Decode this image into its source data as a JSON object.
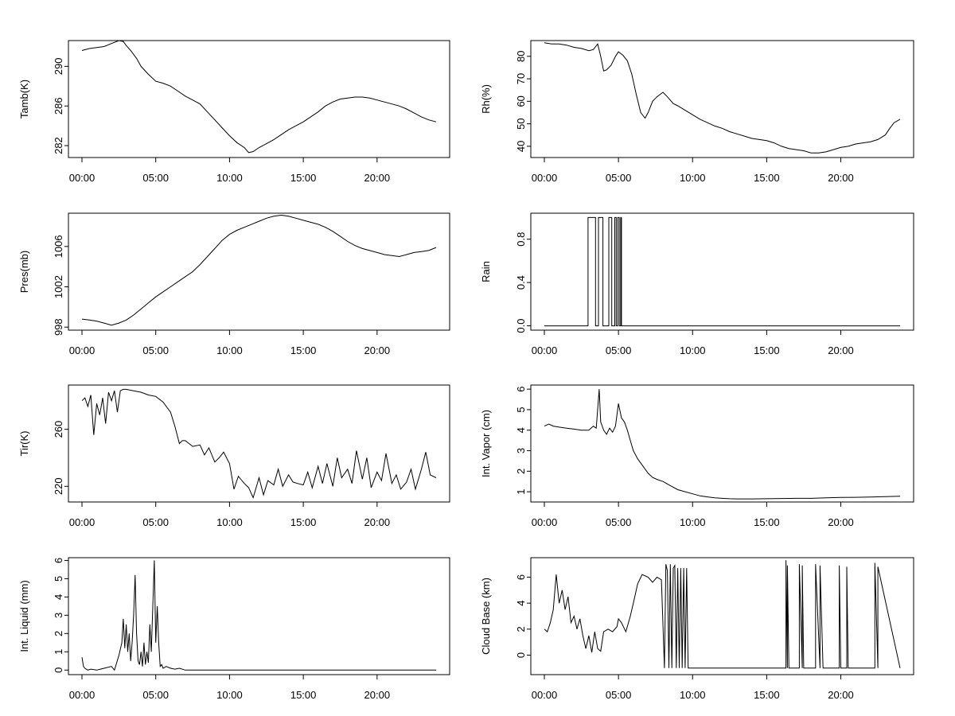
{
  "chart_data": [
    {
      "id": "tamb",
      "type": "line",
      "ylabel": "Tamb(K)",
      "xlabel": "",
      "x_ticks": [
        "00:00",
        "05:00",
        "10:00",
        "15:00",
        "20:00"
      ],
      "xlim": [
        0,
        24
      ],
      "ylim": [
        280.8,
        292.6
      ],
      "y_ticks": [
        "282",
        "286",
        "290"
      ],
      "series": [
        {
          "name": "Tamb(K)",
          "x": [
            0,
            0.5,
            1,
            1.5,
            2,
            2.5,
            2.8,
            3,
            3.3,
            3.7,
            4,
            4.5,
            5,
            5.5,
            6,
            6.5,
            7,
            7.5,
            8,
            8.5,
            9,
            9.5,
            10,
            10.5,
            11,
            11.3,
            11.6,
            12,
            12.5,
            13,
            13.5,
            14,
            14.5,
            15,
            15.5,
            16,
            16.5,
            17,
            17.5,
            18,
            18.5,
            19,
            19.5,
            20,
            20.5,
            21,
            21.5,
            22,
            22.5,
            23,
            23.5,
            24
          ],
          "y": [
            291.6,
            291.8,
            291.9,
            292.0,
            292.3,
            292.6,
            292.5,
            292.1,
            291.6,
            290.8,
            290.0,
            289.2,
            288.5,
            288.3,
            288.0,
            287.5,
            287.0,
            286.6,
            286.2,
            285.4,
            284.6,
            283.8,
            283.0,
            282.3,
            281.8,
            281.3,
            281.4,
            281.8,
            282.2,
            282.6,
            283.1,
            283.6,
            284.0,
            284.4,
            284.9,
            285.4,
            286.0,
            286.4,
            286.7,
            286.8,
            286.9,
            286.9,
            286.8,
            286.6,
            286.4,
            286.2,
            286.0,
            285.7,
            285.3,
            284.9,
            284.6,
            284.4
          ]
        }
      ]
    },
    {
      "id": "rh",
      "type": "line",
      "ylabel": "Rh(%)",
      "xlabel": "",
      "x_ticks": [
        "00:00",
        "05:00",
        "10:00",
        "15:00",
        "20:00"
      ],
      "xlim": [
        0,
        24
      ],
      "ylim": [
        35,
        87
      ],
      "y_ticks": [
        "40",
        "50",
        "60",
        "70",
        "80"
      ],
      "series": [
        {
          "name": "Rh(%)",
          "x": [
            0,
            0.5,
            1,
            1.5,
            2,
            2.5,
            3,
            3.3,
            3.6,
            3.8,
            4.0,
            4.2,
            4.5,
            4.8,
            5.0,
            5.3,
            5.6,
            5.9,
            6.2,
            6.5,
            6.8,
            7.0,
            7.3,
            7.6,
            8.0,
            8.3,
            8.7,
            9.0,
            9.5,
            10,
            10.5,
            11,
            11.5,
            12,
            12.5,
            13,
            13.5,
            14,
            14.5,
            15,
            15.5,
            16,
            16.5,
            17,
            17.5,
            18,
            18.5,
            19,
            19.5,
            20,
            20.5,
            21,
            21.5,
            22,
            22.5,
            23,
            23.3,
            23.6,
            24
          ],
          "y": [
            86,
            85.5,
            85.5,
            85,
            84,
            83.5,
            82.5,
            83,
            85.5,
            80,
            73.5,
            74,
            76,
            80,
            82,
            80.5,
            78,
            72,
            63,
            55,
            52.5,
            55,
            60,
            62,
            64,
            62,
            59,
            58,
            56,
            54,
            52,
            50.5,
            49,
            48,
            46.5,
            45.5,
            44.5,
            43.5,
            43,
            42.5,
            41.5,
            40,
            39,
            38.5,
            38,
            37,
            37,
            37.5,
            38.5,
            39.5,
            40,
            41,
            41.5,
            42,
            43,
            45,
            48,
            50.5,
            52
          ]
        }
      ]
    },
    {
      "id": "pres",
      "type": "line",
      "ylabel": "Pres(mb)",
      "xlabel": "",
      "x_ticks": [
        "00:00",
        "05:00",
        "10:00",
        "15:00",
        "20:00"
      ],
      "xlim": [
        0,
        24
      ],
      "ylim": [
        997.7,
        1009.3
      ],
      "y_ticks": [
        "998",
        "1002",
        "1006"
      ],
      "series": [
        {
          "name": "Pres(mb)",
          "x": [
            0,
            0.5,
            1,
            1.5,
            2,
            2.5,
            3,
            3.5,
            4,
            4.5,
            5,
            5.5,
            6,
            6.5,
            7,
            7.5,
            8,
            8.5,
            9,
            9.5,
            10,
            10.5,
            11,
            11.5,
            12,
            12.5,
            13,
            13.5,
            14,
            14.5,
            15,
            15.5,
            16,
            16.5,
            17,
            17.5,
            18,
            18.5,
            19,
            19.5,
            20,
            20.5,
            21,
            21.5,
            22,
            22.5,
            23,
            23.5,
            24
          ],
          "y": [
            998.8,
            998.7,
            998.6,
            998.4,
            998.2,
            998.4,
            998.7,
            999.2,
            999.8,
            1000.4,
            1001.0,
            1001.5,
            1002.0,
            1002.5,
            1003.0,
            1003.5,
            1004.2,
            1005.0,
            1005.8,
            1006.6,
            1007.2,
            1007.6,
            1007.9,
            1008.2,
            1008.5,
            1008.8,
            1009.0,
            1009.1,
            1009.0,
            1008.8,
            1008.6,
            1008.4,
            1008.2,
            1007.9,
            1007.5,
            1007.0,
            1006.5,
            1006.1,
            1005.8,
            1005.6,
            1005.4,
            1005.2,
            1005.1,
            1005.0,
            1005.2,
            1005.4,
            1005.5,
            1005.6,
            1005.9
          ]
        }
      ]
    },
    {
      "id": "rain",
      "type": "line",
      "ylabel": "Rain",
      "xlabel": "",
      "x_ticks": [
        "00:00",
        "05:00",
        "10:00",
        "15:00",
        "20:00"
      ],
      "xlim": [
        0,
        24
      ],
      "ylim": [
        -0.04,
        1.04
      ],
      "y_ticks": [
        "0.0",
        "0.4",
        "0.8"
      ],
      "series": [
        {
          "name": "Rain",
          "x": [
            0,
            2.95,
            2.95,
            3.45,
            3.45,
            3.65,
            3.65,
            3.95,
            3.95,
            4.35,
            4.35,
            4.55,
            4.55,
            4.75,
            4.75,
            4.85,
            4.85,
            4.95,
            4.95,
            5.05,
            5.05,
            5.15,
            5.15,
            5.2,
            5.2,
            24
          ],
          "y": [
            0,
            0,
            1,
            1,
            0,
            0,
            1,
            1,
            0,
            0,
            1,
            1,
            0,
            0,
            1,
            1,
            0,
            0,
            1,
            1,
            0,
            0,
            1,
            1,
            0,
            0
          ]
        }
      ]
    },
    {
      "id": "tir",
      "type": "line",
      "ylabel": "Tir(K)",
      "xlabel": "",
      "x_ticks": [
        "00:00",
        "05:00",
        "10:00",
        "15:00",
        "20:00"
      ],
      "xlim": [
        0,
        24
      ],
      "ylim": [
        209,
        291
      ],
      "y_ticks": [
        "220",
        "260"
      ],
      "series": [
        {
          "name": "Tir(K)",
          "x": [
            0,
            0.2,
            0.4,
            0.6,
            0.8,
            1,
            1.2,
            1.4,
            1.6,
            1.8,
            2,
            2.2,
            2.4,
            2.6,
            2.8,
            3,
            3.5,
            4,
            4.5,
            5,
            5.5,
            6,
            6.3,
            6.6,
            6.8,
            7,
            7.5,
            8,
            8.3,
            8.6,
            9,
            9.3,
            9.6,
            10,
            10.3,
            10.6,
            11,
            11.3,
            11.6,
            12,
            12.3,
            12.6,
            13,
            13.3,
            13.6,
            14,
            14.3,
            14.6,
            15,
            15.3,
            15.6,
            16,
            16.3,
            16.6,
            17,
            17.3,
            17.6,
            18,
            18.3,
            18.6,
            19,
            19.3,
            19.6,
            20,
            20.3,
            20.6,
            21,
            21.3,
            21.6,
            22,
            22.3,
            22.6,
            23,
            23.3,
            23.6,
            24
          ],
          "y": [
            280,
            282,
            276,
            284,
            256,
            278,
            270,
            282,
            264,
            286,
            280,
            287,
            272,
            287,
            288,
            288,
            287,
            286,
            284,
            283,
            279,
            272,
            262,
            250,
            252,
            252,
            248,
            249,
            242,
            247,
            237,
            240,
            244,
            236,
            218,
            227,
            222,
            219,
            212,
            226,
            214,
            224,
            221,
            232,
            220,
            228,
            223,
            222,
            221,
            230,
            219,
            234,
            222,
            236,
            220,
            240,
            226,
            232,
            222,
            245,
            225,
            240,
            219,
            230,
            224,
            243,
            222,
            228,
            218,
            223,
            232,
            218,
            232,
            244,
            228,
            226
          ]
        }
      ]
    },
    {
      "id": "vapor",
      "type": "line",
      "ylabel": "Int. Vapor (cm)",
      "xlabel": "",
      "x_ticks": [
        "00:00",
        "05:00",
        "10:00",
        "15:00",
        "20:00"
      ],
      "xlim": [
        0,
        24
      ],
      "ylim": [
        0.5,
        6.2
      ],
      "y_ticks": [
        "1",
        "2",
        "3",
        "4",
        "5",
        "6"
      ],
      "series": [
        {
          "name": "Int. Vapor (cm)",
          "x": [
            0,
            0.3,
            0.6,
            1,
            1.5,
            2,
            2.5,
            3,
            3.3,
            3.5,
            3.7,
            3.8,
            4.0,
            4.2,
            4.4,
            4.6,
            4.8,
            5.0,
            5.2,
            5.4,
            5.6,
            5.8,
            6.0,
            6.3,
            6.6,
            7,
            7.3,
            7.6,
            8,
            8.5,
            9,
            9.5,
            10,
            10.5,
            11,
            11.5,
            12,
            12.5,
            13,
            14,
            15,
            16,
            17,
            18,
            19,
            20,
            21,
            22,
            23,
            24
          ],
          "y": [
            4.2,
            4.3,
            4.2,
            4.15,
            4.1,
            4.05,
            4.0,
            4.0,
            4.2,
            4.1,
            6.0,
            4.4,
            4.0,
            3.8,
            4.1,
            3.9,
            4.2,
            5.3,
            4.6,
            4.4,
            4.0,
            3.5,
            3.0,
            2.6,
            2.3,
            1.9,
            1.7,
            1.6,
            1.5,
            1.3,
            1.1,
            1.0,
            0.9,
            0.8,
            0.75,
            0.7,
            0.68,
            0.66,
            0.65,
            0.65,
            0.66,
            0.67,
            0.68,
            0.68,
            0.7,
            0.72,
            0.73,
            0.74,
            0.76,
            0.78
          ]
        }
      ]
    },
    {
      "id": "liquid",
      "type": "line",
      "ylabel": "Int. Liquid (mm)",
      "xlabel": "",
      "x_ticks": [
        "00:00",
        "05:00",
        "10:00",
        "15:00",
        "20:00"
      ],
      "xlim": [
        0,
        24
      ],
      "ylim": [
        -0.25,
        6.15
      ],
      "y_ticks": [
        "0",
        "1",
        "2",
        "3",
        "4",
        "5",
        "6"
      ],
      "series": [
        {
          "name": "Int. Liquid (mm)",
          "x": [
            0,
            0.1,
            0.2,
            0.4,
            0.6,
            1,
            1.5,
            2,
            2.2,
            2.5,
            2.7,
            2.8,
            2.9,
            3.0,
            3.1,
            3.2,
            3.3,
            3.4,
            3.5,
            3.6,
            3.7,
            3.8,
            3.9,
            4.0,
            4.1,
            4.2,
            4.3,
            4.4,
            4.5,
            4.6,
            4.7,
            4.8,
            4.9,
            5.0,
            5.1,
            5.2,
            5.3,
            5.4,
            5.5,
            5.7,
            6,
            6.3,
            6.6,
            7,
            24
          ],
          "y": [
            0.7,
            0.2,
            0.1,
            0,
            0.05,
            0,
            0.1,
            0.2,
            0,
            0.8,
            1.5,
            2.8,
            1.2,
            2.5,
            1.0,
            2.0,
            0.5,
            1.5,
            3.0,
            5.2,
            2.0,
            0.5,
            0.3,
            1.0,
            0.2,
            1.5,
            0.3,
            1.0,
            0.4,
            2.5,
            1.0,
            3.5,
            6.0,
            1.5,
            3.5,
            1.5,
            0.2,
            0.3,
            0.1,
            0.2,
            0.1,
            0.05,
            0.1,
            0,
            0
          ]
        }
      ]
    },
    {
      "id": "cloudbase",
      "type": "line",
      "ylabel": "Cloud Base (km)",
      "xlabel": "",
      "x_ticks": [
        "00:00",
        "05:00",
        "10:00",
        "15:00",
        "20:00"
      ],
      "xlim": [
        0,
        24
      ],
      "ylim": [
        -1.5,
        7.5
      ],
      "y_ticks": [
        "0",
        "2",
        "4",
        "6"
      ],
      "series": [
        {
          "name": "Cloud Base (km)",
          "x": [
            0,
            0.2,
            0.4,
            0.6,
            0.8,
            1,
            1.2,
            1.4,
            1.6,
            1.8,
            2,
            2.2,
            2.4,
            2.6,
            2.8,
            3,
            3.2,
            3.4,
            3.6,
            3.8,
            4,
            4.3,
            4.6,
            4.9,
            5,
            5.2,
            5.5,
            5.8,
            6,
            6.3,
            6.6,
            7,
            7.3,
            7.6,
            7.9,
            8.1,
            8.2,
            8.3,
            8.4,
            8.5,
            8.6,
            8.7,
            8.8,
            8.9,
            9.0,
            9.1,
            9.2,
            9.3,
            9.4,
            9.5,
            9.6,
            9.7,
            10,
            16.3,
            16.3,
            16.4,
            16.4,
            16.5,
            16.5,
            17.2,
            17.2,
            17.4,
            17.4,
            17.5,
            17.5,
            17.7,
            17.7,
            18.3,
            18.3,
            18.6,
            18.6,
            18.8,
            18.8,
            19.0,
            19.0,
            19.9,
            19.9,
            20.0,
            20.0,
            20.4,
            20.4,
            20.5,
            20.5,
            22.3,
            22.3,
            22.5,
            22.5,
            24
          ],
          "y": [
            2,
            1.8,
            2.5,
            3.5,
            6.2,
            4,
            5,
            3.5,
            4.5,
            2.5,
            3,
            2,
            2.8,
            1.5,
            0.5,
            1.5,
            0.2,
            1.8,
            0.5,
            0.3,
            1.8,
            2,
            1.8,
            2.2,
            2.8,
            2.5,
            1.8,
            3,
            4,
            5.5,
            6.2,
            6,
            5.6,
            6,
            5.8,
            -1,
            7,
            6.5,
            -1,
            7,
            -1,
            6.7,
            6.9,
            -1,
            6.7,
            -1,
            6.7,
            -1,
            6.7,
            -1,
            6.7,
            -1,
            -1,
            -1,
            7.3,
            -1,
            6.9,
            -1,
            -1,
            -1,
            7.0,
            -1,
            6.9,
            -1,
            -1,
            -1,
            -1,
            -1,
            7.0,
            -1,
            6.9,
            -1,
            -1,
            -1,
            -1,
            -1,
            6.9,
            -1,
            -1,
            -1,
            6.8,
            -1,
            -1,
            -1,
            7.1,
            -1,
            6.8,
            -1
          ]
        }
      ]
    }
  ]
}
